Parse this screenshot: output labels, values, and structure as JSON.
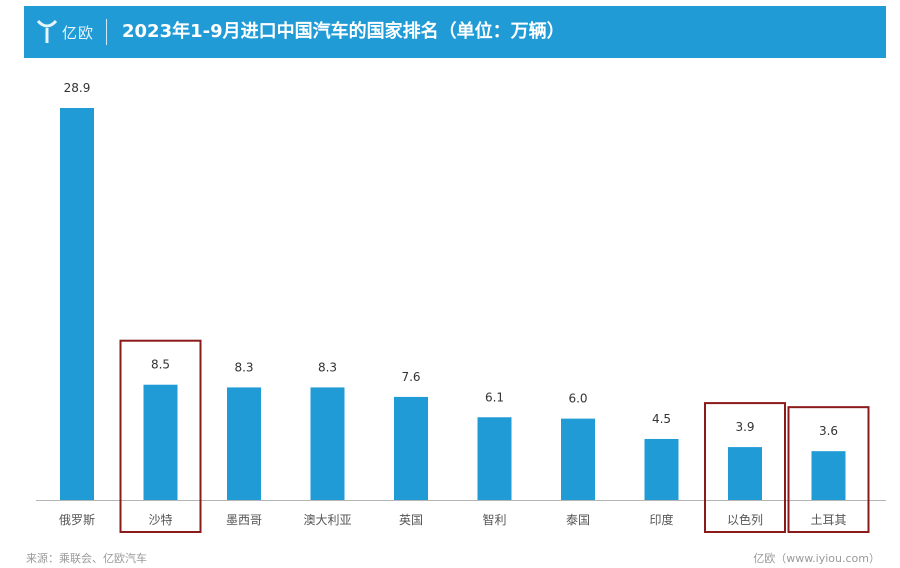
{
  "header": {
    "logo_text": "亿欧",
    "title": "2023年1-9月进口中国汽车的国家排名（单位：万辆）"
  },
  "colors": {
    "header_bg": "#219bd6",
    "bar": "#219bd6",
    "highlight_box": "#8b1a1a"
  },
  "chart_data": {
    "type": "bar",
    "title": "2023年1-9月进口中国汽车的国家排名（单位：万辆）",
    "categories": [
      "俄罗斯",
      "沙特",
      "墨西哥",
      "澳大利亚",
      "英国",
      "智利",
      "泰国",
      "印度",
      "以色列",
      "土耳其"
    ],
    "values": [
      28.9,
      8.5,
      8.3,
      8.3,
      7.6,
      6.1,
      6.0,
      4.5,
      3.9,
      3.6
    ],
    "value_labels": [
      "28.9",
      "8.5",
      "8.3",
      "8.3",
      "7.6",
      "6.1",
      "6.0",
      "4.5",
      "3.9",
      "3.6"
    ],
    "highlighted": [
      "沙特",
      "以色列",
      "土耳其"
    ],
    "xlabel": "",
    "ylabel": "",
    "ylim": [
      0,
      30
    ],
    "grid": false,
    "legend": "none"
  },
  "footer": {
    "source": "来源：乘联会、亿欧汽车",
    "credit": "亿欧（www.iyiou.com）"
  }
}
